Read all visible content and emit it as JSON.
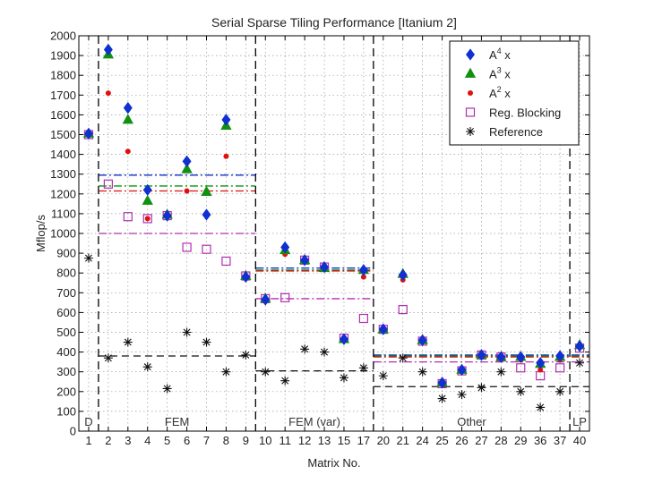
{
  "chart_data": {
    "type": "scatter",
    "title": "Serial Sparse Tiling Performance [Itanium 2]",
    "xlabel": "Matrix No.",
    "ylabel": "Mflop/s",
    "ylim": [
      0,
      2000
    ],
    "yticks": [
      0,
      100,
      200,
      300,
      400,
      500,
      600,
      700,
      800,
      900,
      1000,
      1100,
      1200,
      1300,
      1400,
      1500,
      1600,
      1700,
      1800,
      1900,
      2000
    ],
    "categories": [
      "1",
      "2",
      "3",
      "4",
      "5",
      "6",
      "7",
      "8",
      "9",
      "10",
      "11",
      "12",
      "13",
      "15",
      "17",
      "20",
      "21",
      "24",
      "25",
      "26",
      "27",
      "28",
      "29",
      "36",
      "37",
      "40"
    ],
    "grid": true,
    "legend_position": "top-right",
    "regions": [
      {
        "label": "D",
        "start": 0,
        "end": 0
      },
      {
        "label": "FEM",
        "start": 1,
        "end": 8
      },
      {
        "label": "FEM (var)",
        "start": 9,
        "end": 14
      },
      {
        "label": "Other",
        "start": 15,
        "end": 24
      },
      {
        "label": "LP",
        "start": 25,
        "end": 25
      }
    ],
    "series": [
      {
        "name": "A^4 x",
        "marker": "diamond",
        "color": "#1030d0",
        "values": [
          1505,
          1930,
          1635,
          1220,
          1090,
          1365,
          1095,
          1575,
          780,
          665,
          930,
          865,
          830,
          465,
          815,
          515,
          790,
          460,
          245,
          310,
          385,
          375,
          375,
          345,
          380,
          430
        ]
      },
      {
        "name": "A^3 x",
        "marker": "triangle",
        "color": "#109010",
        "values": [
          1505,
          1905,
          1575,
          1165,
          1095,
          1325,
          1210,
          1545,
          785,
          670,
          915,
          865,
          825,
          465,
          815,
          515,
          795,
          460,
          245,
          310,
          385,
          375,
          375,
          340,
          375,
          435
        ]
      },
      {
        "name": "A^2 x",
        "marker": "dot",
        "color": "#e01010",
        "values": [
          1500,
          1710,
          1415,
          1075,
          1090,
          1215,
          1215,
          1390,
          780,
          665,
          895,
          865,
          825,
          465,
          780,
          515,
          765,
          455,
          235,
          305,
          380,
          375,
          360,
          310,
          360,
          425
        ]
      },
      {
        "name": "Reg. Blocking",
        "marker": "square",
        "color": "#b030b0",
        "values": [
          1500,
          1250,
          1085,
          1075,
          1090,
          930,
          920,
          860,
          785,
          670,
          675,
          865,
          830,
          470,
          570,
          515,
          615,
          455,
          240,
          305,
          385,
          375,
          320,
          280,
          320,
          420
        ]
      },
      {
        "name": "Reference",
        "marker": "star",
        "color": "#111111",
        "values": [
          875,
          370,
          450,
          325,
          215,
          500,
          450,
          300,
          385,
          300,
          255,
          415,
          400,
          270,
          320,
          280,
          370,
          300,
          165,
          185,
          220,
          300,
          200,
          120,
          200,
          345
        ]
      }
    ],
    "reference_lines": [
      {
        "series": "A^4 x",
        "style": "dash-dot",
        "color": "#1030d0",
        "segments": [
          {
            "start": 1,
            "end": 8,
            "y": 1295
          },
          {
            "start": 9,
            "end": 14,
            "y": 825
          },
          {
            "start": 15,
            "end": 25,
            "y": 385
          }
        ]
      },
      {
        "series": "A^3 x",
        "style": "dash-dot",
        "color": "#109010",
        "segments": [
          {
            "start": 1,
            "end": 8,
            "y": 1240
          },
          {
            "start": 9,
            "end": 14,
            "y": 815
          },
          {
            "start": 15,
            "end": 25,
            "y": 380
          }
        ]
      },
      {
        "series": "A^2 x",
        "style": "dash-dot",
        "color": "#e01010",
        "segments": [
          {
            "start": 1,
            "end": 8,
            "y": 1215
          },
          {
            "start": 9,
            "end": 14,
            "y": 810
          },
          {
            "start": 15,
            "end": 25,
            "y": 375
          }
        ]
      },
      {
        "series": "Reg. Blocking",
        "style": "dash-dot",
        "color": "#b030b0",
        "segments": [
          {
            "start": 1,
            "end": 8,
            "y": 1000
          },
          {
            "start": 9,
            "end": 14,
            "y": 670
          },
          {
            "start": 15,
            "end": 25,
            "y": 350
          }
        ]
      },
      {
        "series": "Reference",
        "style": "dash",
        "color": "#111111",
        "segments": [
          {
            "start": 1,
            "end": 8,
            "y": 380
          },
          {
            "start": 9,
            "end": 14,
            "y": 305
          },
          {
            "start": 15,
            "end": 25,
            "y": 225
          }
        ]
      }
    ]
  }
}
